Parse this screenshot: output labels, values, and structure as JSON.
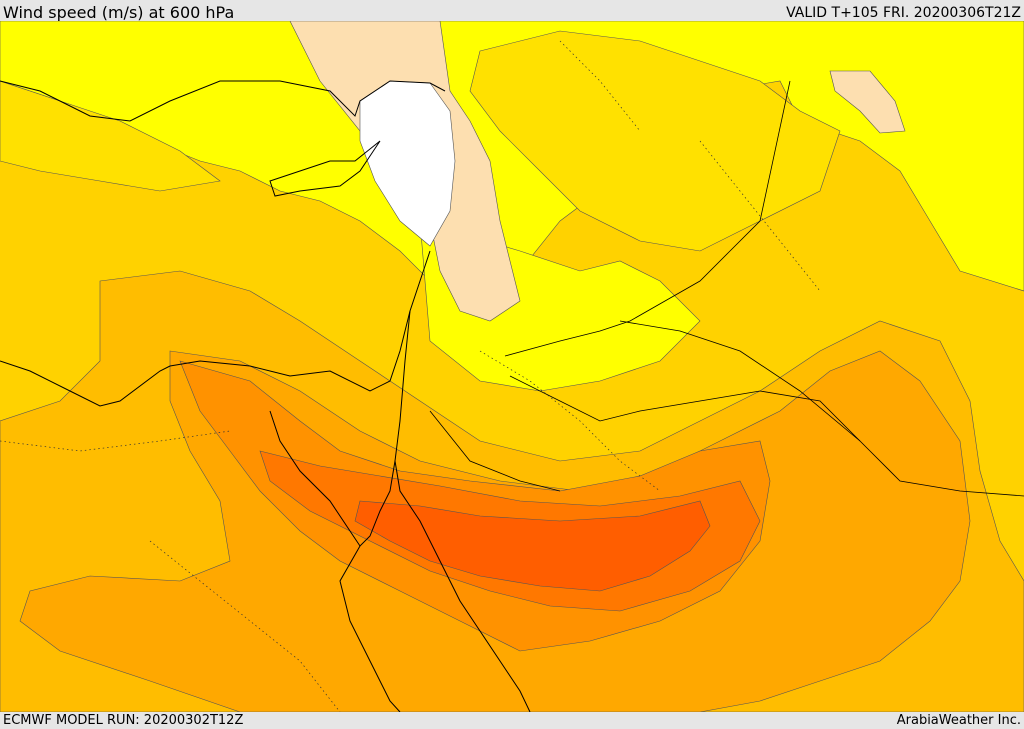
{
  "header": {
    "title": "Wind speed (m/s) at 600 hPa",
    "valid": "VALID T+105 FRI. 20200306T21Z"
  },
  "footer": {
    "model_run": "ECMWF MODEL RUN: 20200302T12Z",
    "credit": "ArabiaWeather Inc."
  },
  "map": {
    "variable": "wind speed",
    "level": "600 hPa",
    "colors": {
      "white": "#ffffff",
      "wheat": "#fddfb0",
      "yellow": "#ffff00",
      "gold_light": "#ffe100",
      "gold": "#ffd200",
      "amber": "#ffbd00",
      "orange_light": "#ffa800",
      "orange": "#ff9200",
      "orange_dark": "#ff7800",
      "red_orange": "#ff5e00"
    }
  }
}
